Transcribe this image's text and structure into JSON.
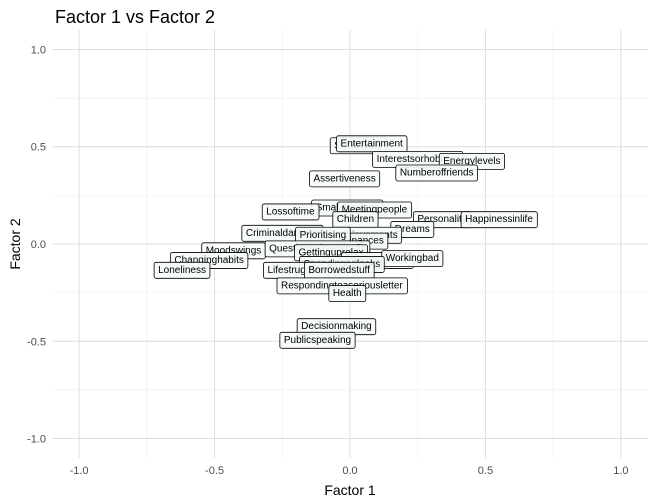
{
  "chart_data": {
    "type": "scatter",
    "title": "Factor 1 vs Factor 2",
    "xlabel": "Factor 1",
    "ylabel": "Factor 2",
    "xlim": [
      -1.1,
      1.1
    ],
    "ylim": [
      -1.1,
      1.1
    ],
    "xticks": [
      "-1.0",
      "-0.5",
      "0.0",
      "0.5",
      "1.0"
    ],
    "yticks": [
      "-1.0",
      "-0.5",
      "0.0",
      "0.5",
      "1.0"
    ],
    "grid": true,
    "labels_boxed": true,
    "box_fill": "#f7fbfb",
    "points": [
      {
        "label": "Socializing",
        "x": 0.03,
        "y": 0.51
      },
      {
        "label": "Entertainment",
        "x": 0.08,
        "y": 0.52
      },
      {
        "label": "Interestsorhobbies",
        "x": 0.25,
        "y": 0.44
      },
      {
        "label": "Energylevels",
        "x": 0.45,
        "y": 0.43
      },
      {
        "label": "Numberoffriends",
        "x": 0.32,
        "y": 0.37
      },
      {
        "label": "Assertiveness",
        "x": -0.02,
        "y": 0.34
      },
      {
        "label": "Small-bigdogs",
        "x": -0.01,
        "y": 0.19
      },
      {
        "label": "Lossoftime",
        "x": -0.22,
        "y": 0.17
      },
      {
        "label": "Meetingpeople",
        "x": 0.09,
        "y": 0.18
      },
      {
        "label": "Children",
        "x": 0.02,
        "y": 0.13
      },
      {
        "label": "Personality",
        "x": 0.34,
        "y": 0.13
      },
      {
        "label": "Happinessinlife",
        "x": 0.55,
        "y": 0.13
      },
      {
        "label": "Dreams",
        "x": 0.23,
        "y": 0.08
      },
      {
        "label": "Achievements",
        "x": 0.06,
        "y": 0.05
      },
      {
        "label": "Finances",
        "x": 0.05,
        "y": 0.02
      },
      {
        "label": "Criminaldamage",
        "x": -0.25,
        "y": 0.06
      },
      {
        "label": "Prioritising",
        "x": -0.1,
        "y": 0.05
      },
      {
        "label": "Moodswings",
        "x": -0.43,
        "y": -0.03
      },
      {
        "label": "Changinghabits",
        "x": -0.52,
        "y": -0.08
      },
      {
        "label": "Questionnairesorpolls",
        "x": -0.12,
        "y": -0.02
      },
      {
        "label": "Gettinguprelax",
        "x": -0.07,
        "y": -0.04
      },
      {
        "label": "Parentsadvice",
        "x": 0.1,
        "y": -0.08
      },
      {
        "label": "Workingbad",
        "x": 0.23,
        "y": -0.07
      },
      {
        "label": "Spendingonlooks",
        "x": -0.03,
        "y": -0.1
      },
      {
        "label": "Lifestruggles",
        "x": -0.2,
        "y": -0.13
      },
      {
        "label": "Borrowedstuff",
        "x": -0.04,
        "y": -0.13
      },
      {
        "label": "Loneliness",
        "x": -0.62,
        "y": -0.13
      },
      {
        "label": "Respondingtoaseriousletter",
        "x": -0.03,
        "y": -0.21
      },
      {
        "label": "Health",
        "x": -0.01,
        "y": -0.25
      },
      {
        "label": "Decisionmaking",
        "x": -0.05,
        "y": -0.42
      },
      {
        "label": "Publicspeaking",
        "x": -0.12,
        "y": -0.49
      }
    ]
  }
}
